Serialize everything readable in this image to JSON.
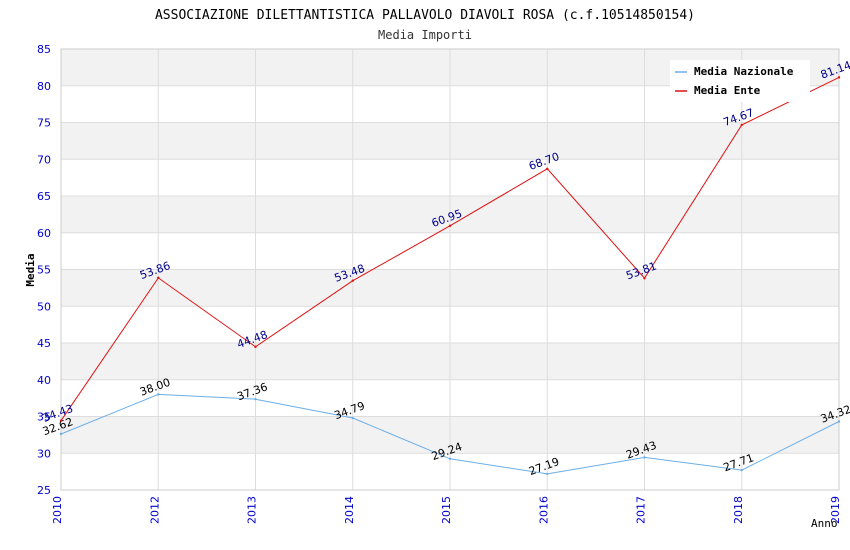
{
  "chart_data": {
    "type": "line",
    "title": "ASSOCIAZIONE DILETTANTISTICA PALLAVOLO DIAVOLI ROSA (c.f.10514850154)",
    "subtitle": "Media Importi",
    "xlabel": "Anno",
    "ylabel": "Media",
    "categories": [
      "2010",
      "2012",
      "2013",
      "2014",
      "2015",
      "2016",
      "2017",
      "2018",
      "2019"
    ],
    "ylim": [
      25,
      85
    ],
    "yticks": [
      25,
      30,
      35,
      40,
      45,
      50,
      55,
      60,
      65,
      70,
      75,
      80,
      85
    ],
    "grid": true,
    "legend_position": "top-right",
    "series": [
      {
        "name": "Media Nazionale",
        "color": "#6aaee8",
        "label_color": "#000000",
        "values": [
          32.62,
          38.0,
          37.36,
          34.79,
          29.24,
          27.19,
          29.43,
          27.71,
          34.32
        ],
        "labels": [
          "32.62",
          "38.00",
          "37.36",
          "34.79",
          "29.24",
          "27.19",
          "29.43",
          "27.71",
          "34.32"
        ]
      },
      {
        "name": "Media Ente",
        "color": "#e01010",
        "label_color": "#00008b",
        "values": [
          34.43,
          53.86,
          44.48,
          53.48,
          60.95,
          68.7,
          53.81,
          74.67,
          81.14
        ],
        "labels": [
          "34.43",
          "53.86",
          "44.48",
          "53.48",
          "60.95",
          "68.70",
          "53.81",
          "74.67",
          "81.14"
        ]
      }
    ]
  }
}
